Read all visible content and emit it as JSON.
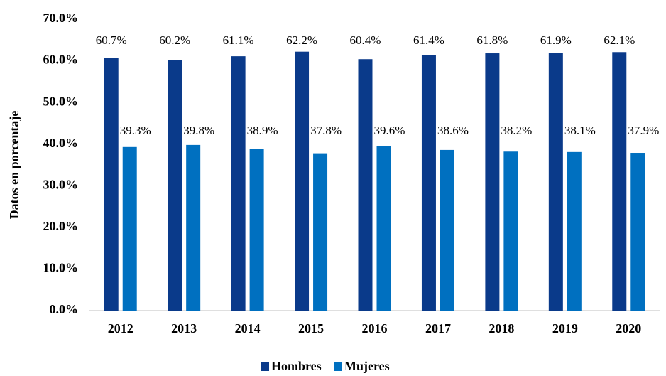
{
  "chart_data": {
    "type": "bar",
    "y_label": "Datos en porcentaje",
    "categories": [
      "2012",
      "2013",
      "2014",
      "2015",
      "2016",
      "2017",
      "2018",
      "2019",
      "2020"
    ],
    "series": [
      {
        "name": "Hombres",
        "color": "#0a3a8a",
        "values": [
          60.7,
          60.2,
          61.1,
          62.2,
          60.4,
          61.4,
          61.8,
          61.9,
          62.1
        ],
        "value_labels": [
          "60.7%",
          "60.2%",
          "61.1%",
          "62.2%",
          "60.4%",
          "61.4%",
          "61.8%",
          "61.9%",
          "62.1%"
        ]
      },
      {
        "name": "Mujeres",
        "color": "#0070c0",
        "values": [
          39.3,
          39.8,
          38.9,
          37.8,
          39.6,
          38.6,
          38.2,
          38.1,
          37.9
        ],
        "value_labels": [
          "39.3%",
          "39.8%",
          "38.9%",
          "37.8%",
          "39.6%",
          "38.6%",
          "38.2%",
          "38.1%",
          "37.9%"
        ]
      }
    ],
    "ylim": [
      0,
      70
    ],
    "yticks": [
      {
        "value": 0,
        "label": "0.0%"
      },
      {
        "value": 10,
        "label": "10.0%"
      },
      {
        "value": 20,
        "label": "20.0%"
      },
      {
        "value": 30,
        "label": "30.0%"
      },
      {
        "value": 40,
        "label": "40.0%"
      },
      {
        "value": 50,
        "label": "50.0%"
      },
      {
        "value": 60,
        "label": "60.0%"
      },
      {
        "value": 70,
        "label": "70.0%"
      }
    ],
    "grid": false,
    "legend": "bottom"
  }
}
